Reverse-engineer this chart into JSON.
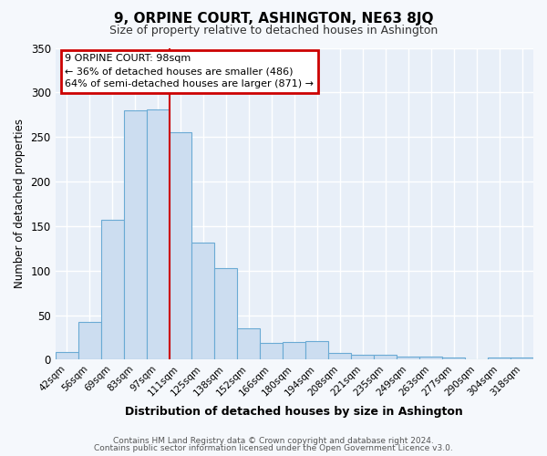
{
  "title": "9, ORPINE COURT, ASHINGTON, NE63 8JQ",
  "subtitle": "Size of property relative to detached houses in Ashington",
  "xlabel": "Distribution of detached houses by size in Ashington",
  "ylabel": "Number of detached properties",
  "bar_color": "#ccddf0",
  "bar_edge_color": "#6aaad4",
  "plot_bg_color": "#e8eff8",
  "figure_bg_color": "#f5f8fc",
  "grid_color": "#ffffff",
  "categories": [
    "42sqm",
    "56sqm",
    "69sqm",
    "83sqm",
    "97sqm",
    "111sqm",
    "125sqm",
    "138sqm",
    "152sqm",
    "166sqm",
    "180sqm",
    "194sqm",
    "208sqm",
    "221sqm",
    "235sqm",
    "249sqm",
    "263sqm",
    "277sqm",
    "290sqm",
    "304sqm",
    "318sqm"
  ],
  "values": [
    9,
    42,
    157,
    280,
    281,
    255,
    131,
    103,
    35,
    19,
    20,
    21,
    8,
    6,
    6,
    4,
    4,
    3,
    0,
    3,
    2
  ],
  "marker_bar_index": 4,
  "annotation_title": "9 ORPINE COURT: 98sqm",
  "annotation_line1": "← 36% of detached houses are smaller (486)",
  "annotation_line2": "64% of semi-detached houses are larger (871) →",
  "annotation_box_color": "#ffffff",
  "annotation_box_edge_color": "#cc0000",
  "marker_line_color": "#cc0000",
  "ylim": [
    0,
    350
  ],
  "yticks": [
    0,
    50,
    100,
    150,
    200,
    250,
    300,
    350
  ],
  "footer1": "Contains HM Land Registry data © Crown copyright and database right 2024.",
  "footer2": "Contains public sector information licensed under the Open Government Licence v3.0."
}
